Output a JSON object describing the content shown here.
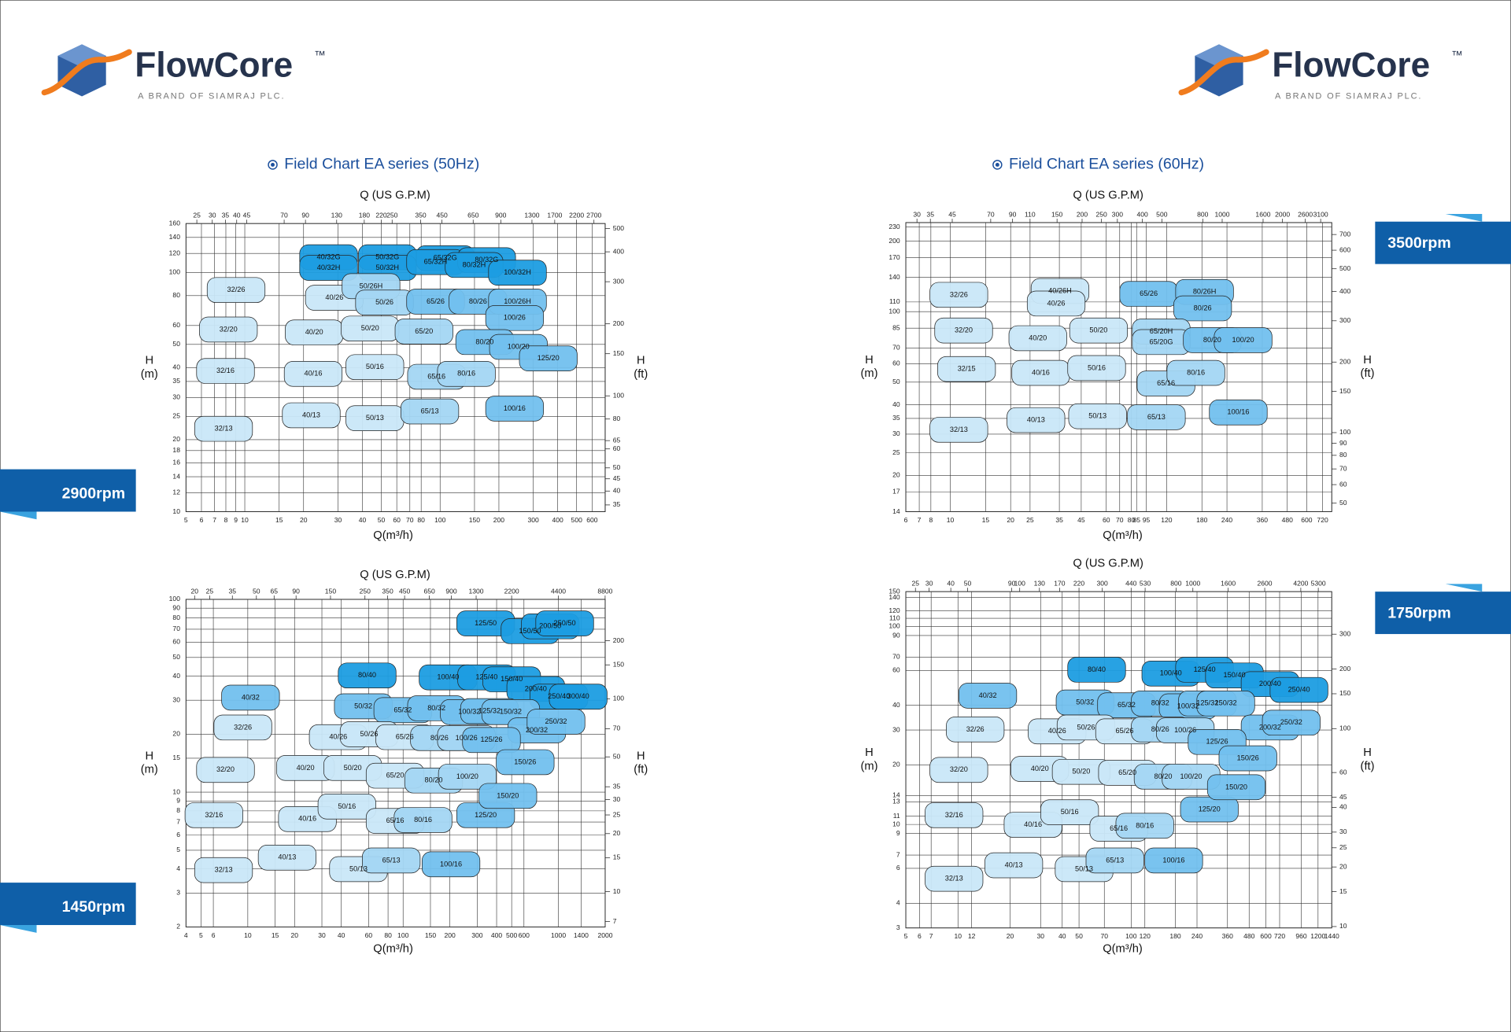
{
  "header": {
    "left": {
      "brand": "FlowCore",
      "tm": "™",
      "tagline": "A BRAND OF SIAMRAJ PLC."
    },
    "right": {
      "brand": "FlowCore",
      "tm": "™",
      "tagline": "A BRAND OF SIAMRAJ PLC."
    }
  },
  "chart_data": [
    {
      "type": "field",
      "title": "Field Chart EA series (50Hz)",
      "rpm": "2900rpm",
      "top_axis_label": "Q (US G.P.M)",
      "x_label": "Q(m³/h)",
      "y_label": "H",
      "y_unit": "(m)",
      "y2_label": "H",
      "y2_unit": "(ft)",
      "log": true,
      "grid": true,
      "xlim": [
        5,
        700
      ],
      "xticks": [
        5,
        6,
        7,
        8,
        9,
        10,
        15,
        20,
        30,
        40,
        50,
        60,
        70,
        80,
        100,
        150,
        200,
        300,
        400,
        500,
        600
      ],
      "x2lim": [
        22,
        3082
      ],
      "x2ticks": [
        25,
        30,
        35,
        40,
        45,
        70,
        90,
        130,
        180,
        220,
        250,
        350,
        450,
        650,
        900,
        1300,
        1700,
        2200,
        2700
      ],
      "ylim": [
        10,
        160
      ],
      "yticks": [
        10,
        12,
        14,
        16,
        18,
        20,
        25,
        30,
        35,
        40,
        50,
        60,
        80,
        100,
        120,
        140,
        160
      ],
      "y2lim": [
        32.8,
        525
      ],
      "y2ticks": [
        35,
        40,
        45,
        50,
        60,
        65,
        80,
        100,
        150,
        200,
        300,
        400,
        500
      ],
      "regions": [
        "40/32G",
        "40/32H",
        "50/32G",
        "50/32H",
        "65/32G",
        "65/32H",
        "80/32G",
        "80/32H",
        "100/32H",
        "32/26",
        "40/26",
        "50/26H",
        "50/26",
        "65/26",
        "80/26",
        "100/26H",
        "100/26",
        "32/20",
        "40/20",
        "50/20",
        "65/20",
        "80/20",
        "100/20",
        "125/20",
        "32/16",
        "40/16",
        "50/16",
        "65/16",
        "80/16",
        "100/16",
        "32/13",
        "40/13",
        "50/13",
        "65/13"
      ]
    },
    {
      "type": "field",
      "title": "Field Chart EA series (60Hz)",
      "rpm": "3500rpm",
      "top_axis_label": "Q (US G.P.M)",
      "x_label": "Q(m³/h)",
      "y_label": "H",
      "y_unit": "(m)",
      "y2_label": "H",
      "y2_unit": "(ft)",
      "log": true,
      "grid": true,
      "xlim": [
        6,
        800
      ],
      "xticks": [
        6,
        7,
        8,
        10,
        15,
        20,
        25,
        35,
        45,
        60,
        70,
        80,
        85,
        95,
        120,
        180,
        240,
        360,
        480,
        600,
        720
      ],
      "x2lim": [
        26.4,
        3522
      ],
      "x2ticks": [
        30,
        35,
        45,
        70,
        90,
        110,
        150,
        200,
        250,
        300,
        400,
        500,
        800,
        1000,
        1600,
        2000,
        2600,
        3100
      ],
      "ylim": [
        14,
        240
      ],
      "yticks": [
        14,
        17,
        20,
        25,
        30,
        35,
        40,
        50,
        60,
        70,
        85,
        100,
        110,
        140,
        170,
        200,
        230
      ],
      "y2lim": [
        46,
        787
      ],
      "y2ticks": [
        50,
        60,
        70,
        80,
        90,
        100,
        150,
        200,
        300,
        400,
        500,
        600,
        700
      ],
      "regions": [
        "32/26",
        "40/26H",
        "40/26",
        "65/26",
        "80/26H",
        "80/26",
        "32/20",
        "40/20",
        "50/20",
        "65/20H",
        "65/20G",
        "80/20",
        "100/20",
        "32/15",
        "40/16",
        "50/16",
        "65/16",
        "80/16",
        "100/16",
        "32/13",
        "40/13",
        "50/13",
        "65/13"
      ]
    },
    {
      "type": "field",
      "rpm": "1450rpm",
      "top_axis_label": "Q (US G.P.M)",
      "x_label": "Q(m³/h)",
      "y_label": "H",
      "y_unit": "(m)",
      "y2_label": "H",
      "y2_unit": "(ft)",
      "log": true,
      "grid": true,
      "xlim": [
        4,
        2000
      ],
      "xticks": [
        4,
        5,
        6,
        10,
        15,
        20,
        30,
        40,
        60,
        80,
        100,
        150,
        200,
        300,
        400,
        500,
        600,
        1000,
        1400,
        2000
      ],
      "x2lim": [
        17.6,
        8806
      ],
      "x2ticks": [
        20,
        25,
        35,
        50,
        65,
        90,
        150,
        250,
        350,
        450,
        650,
        900,
        1300,
        2200,
        4400,
        8800
      ],
      "ylim": [
        2,
        100
      ],
      "yticks": [
        2,
        3,
        4,
        5,
        6,
        7,
        8,
        9,
        10,
        15,
        20,
        30,
        40,
        50,
        60,
        70,
        80,
        90,
        100
      ],
      "y2lim": [
        6.56,
        328
      ],
      "y2ticks": [
        7,
        10,
        15,
        20,
        25,
        30,
        35,
        50,
        70,
        100,
        150,
        200
      ],
      "regions": [
        "125/50",
        "150/50",
        "200/50",
        "250/50",
        "80/40",
        "100/40",
        "125/40",
        "150/40",
        "200/40",
        "250/40",
        "300/40",
        "40/32",
        "50/32",
        "65/32",
        "80/32",
        "100/32",
        "125/32",
        "150/32",
        "200/32",
        "250/32",
        "32/26",
        "40/26",
        "50/26",
        "65/26",
        "80/26",
        "100/26",
        "125/26",
        "150/26",
        "32/20",
        "40/20",
        "50/20",
        "65/20",
        "80/20",
        "100/20",
        "125/20",
        "150/20",
        "32/16",
        "40/16",
        "50/16",
        "65/16",
        "80/16",
        "100/16",
        "32/13",
        "40/13",
        "50/13",
        "65/13"
      ]
    },
    {
      "type": "field",
      "rpm": "1750rpm",
      "top_axis_label": "Q (US G.P.M)",
      "x_label": "Q(m³/h)",
      "y_label": "H",
      "y_unit": "(m)",
      "y2_label": "H",
      "y2_unit": "(ft)",
      "log": true,
      "grid": true,
      "xlim": [
        5,
        1440
      ],
      "xticks": [
        5,
        6,
        7,
        10,
        12,
        20,
        30,
        40,
        50,
        70,
        100,
        120,
        180,
        240,
        360,
        480,
        600,
        720,
        960,
        1200,
        1440
      ],
      "x2lim": [
        22,
        6340
      ],
      "x2ticks": [
        25,
        30,
        40,
        50,
        90,
        100,
        130,
        170,
        220,
        300,
        440,
        530,
        800,
        1000,
        1600,
        2600,
        4200,
        5300
      ],
      "ylim": [
        3,
        150
      ],
      "yticks": [
        3,
        4,
        6,
        7,
        9,
        10,
        11,
        13,
        14,
        20,
        30,
        40,
        60,
        70,
        90,
        100,
        110,
        120,
        140,
        150
      ],
      "y2lim": [
        9.84,
        492
      ],
      "y2ticks": [
        10,
        15,
        20,
        25,
        30,
        40,
        45,
        60,
        100,
        150,
        200,
        300
      ],
      "regions": [
        "80/40",
        "100/40",
        "125/40",
        "150/40",
        "200/40",
        "250/40",
        "40/32",
        "50/32",
        "65/32",
        "80/32",
        "100/32",
        "125/32",
        "150/32",
        "200/32",
        "250/32",
        "32/26",
        "40/26",
        "50/26",
        "65/26",
        "80/26",
        "100/26",
        "125/26",
        "150/26",
        "32/20",
        "40/20",
        "50/20",
        "65/20",
        "80/20",
        "100/20",
        "125/20",
        "150/20",
        "32/16",
        "40/16",
        "50/16",
        "65/16",
        "80/16",
        "100/16",
        "32/13",
        "40/13",
        "50/13",
        "65/13"
      ]
    }
  ]
}
